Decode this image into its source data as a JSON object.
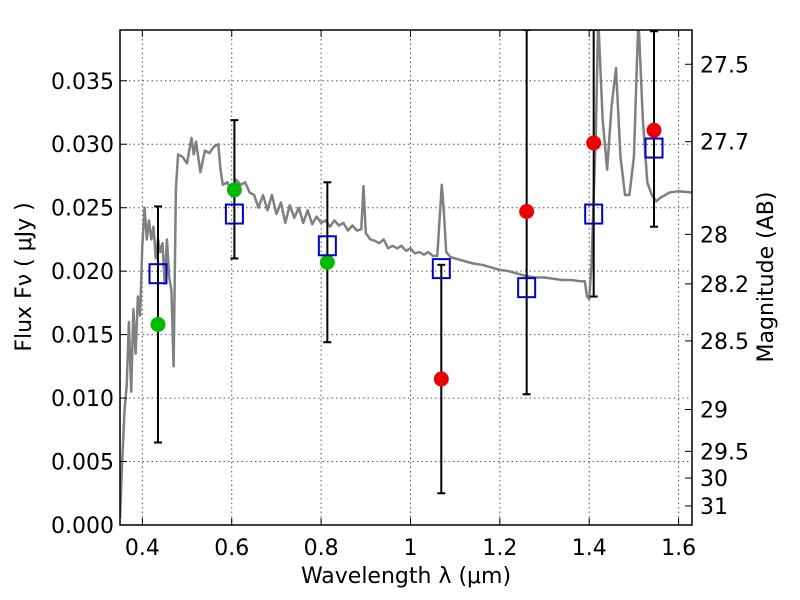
{
  "chart_data": {
    "type": "scatter",
    "title": "",
    "xlabel": "Wavelength  λ (μm)",
    "ylabel": "Flux  Fν  ( μJy )",
    "ylabel_right": "Magnitude (AB)",
    "xlim": [
      0.35,
      1.63
    ],
    "ylim": [
      0.0,
      0.039
    ],
    "grid": true,
    "x_ticks": [
      {
        "value": 0.4,
        "label": "0.4"
      },
      {
        "value": 0.6,
        "label": "0.6"
      },
      {
        "value": 0.8,
        "label": "0.8"
      },
      {
        "value": 1.0,
        "label": "1"
      },
      {
        "value": 1.2,
        "label": "1.2"
      },
      {
        "value": 1.4,
        "label": "1.4"
      },
      {
        "value": 1.6,
        "label": "1.6"
      }
    ],
    "y_ticks": [
      {
        "value": 0.0,
        "label": "0.000"
      },
      {
        "value": 0.005,
        "label": "0.005"
      },
      {
        "value": 0.01,
        "label": "0.010"
      },
      {
        "value": 0.015,
        "label": "0.015"
      },
      {
        "value": 0.02,
        "label": "0.020"
      },
      {
        "value": 0.025,
        "label": "0.025"
      },
      {
        "value": 0.03,
        "label": "0.030"
      },
      {
        "value": 0.035,
        "label": "0.035"
      }
    ],
    "right_ticks": [
      {
        "flux": 0.0363,
        "label": "27.5"
      },
      {
        "flux": 0.0302,
        "label": "27.7"
      },
      {
        "flux": 0.0229,
        "label": "28"
      },
      {
        "flux": 0.019,
        "label": "28.2"
      },
      {
        "flux": 0.0145,
        "label": "28.5"
      },
      {
        "flux": 0.0091,
        "label": "29"
      },
      {
        "flux": 0.0058,
        "label": "29.5"
      },
      {
        "flux": 0.0037,
        "label": "30"
      },
      {
        "flux": 0.0015,
        "label": "31"
      }
    ],
    "colors": {
      "model": "#808080",
      "green": "#00bb00",
      "red": "#ee0000",
      "box": "#0000cc",
      "errorbar": "#000000",
      "grid": "#555555"
    },
    "series": [
      {
        "type": "line",
        "points": [
          [
            0.35,
            0.0005
          ],
          [
            0.355,
            0.005
          ],
          [
            0.36,
            0.009
          ],
          [
            0.365,
            0.011
          ],
          [
            0.37,
            0.016
          ],
          [
            0.375,
            0.0105
          ],
          [
            0.38,
            0.017
          ],
          [
            0.385,
            0.0135
          ],
          [
            0.39,
            0.018
          ],
          [
            0.395,
            0.0165
          ],
          [
            0.4,
            0.022
          ],
          [
            0.405,
            0.025
          ],
          [
            0.41,
            0.0225
          ],
          [
            0.415,
            0.024
          ],
          [
            0.42,
            0.0225
          ],
          [
            0.425,
            0.0235
          ],
          [
            0.43,
            0.021
          ],
          [
            0.435,
            0.0225
          ],
          [
            0.44,
            0.0215
          ],
          [
            0.445,
            0.0222
          ],
          [
            0.45,
            0.019
          ],
          [
            0.455,
            0.0225
          ],
          [
            0.46,
            0.0195
          ],
          [
            0.465,
            0.0185
          ],
          [
            0.47,
            0.0125
          ],
          [
            0.475,
            0.0265
          ],
          [
            0.48,
            0.0292
          ],
          [
            0.49,
            0.029
          ],
          [
            0.5,
            0.0285
          ],
          [
            0.51,
            0.0305
          ],
          [
            0.515,
            0.0292
          ],
          [
            0.52,
            0.0302
          ],
          [
            0.53,
            0.0278
          ],
          [
            0.54,
            0.0295
          ],
          [
            0.55,
            0.0293
          ],
          [
            0.56,
            0.0298
          ],
          [
            0.57,
            0.03
          ],
          [
            0.575,
            0.028
          ],
          [
            0.58,
            0.0268
          ],
          [
            0.59,
            0.027
          ],
          [
            0.6,
            0.0263
          ],
          [
            0.61,
            0.0272
          ],
          [
            0.62,
            0.0268
          ],
          [
            0.63,
            0.027
          ],
          [
            0.64,
            0.0262
          ],
          [
            0.65,
            0.026
          ],
          [
            0.66,
            0.025
          ],
          [
            0.67,
            0.026
          ],
          [
            0.68,
            0.0248
          ],
          [
            0.69,
            0.026
          ],
          [
            0.7,
            0.0245
          ],
          [
            0.71,
            0.0254
          ],
          [
            0.72,
            0.0238
          ],
          [
            0.73,
            0.0252
          ],
          [
            0.74,
            0.0242
          ],
          [
            0.75,
            0.025
          ],
          [
            0.76,
            0.0238
          ],
          [
            0.77,
            0.0248
          ],
          [
            0.78,
            0.0237
          ],
          [
            0.79,
            0.0243
          ],
          [
            0.8,
            0.0238
          ],
          [
            0.81,
            0.024
          ],
          [
            0.82,
            0.0235
          ],
          [
            0.83,
            0.024
          ],
          [
            0.84,
            0.0236
          ],
          [
            0.85,
            0.0238
          ],
          [
            0.86,
            0.0232
          ],
          [
            0.87,
            0.0236
          ],
          [
            0.88,
            0.0232
          ],
          [
            0.89,
            0.0233
          ],
          [
            0.895,
            0.0267
          ],
          [
            0.9,
            0.023
          ],
          [
            0.91,
            0.0225
          ],
          [
            0.92,
            0.0224
          ],
          [
            0.93,
            0.0222
          ],
          [
            0.94,
            0.0225
          ],
          [
            0.95,
            0.0218
          ],
          [
            0.96,
            0.022
          ],
          [
            0.97,
            0.0218
          ],
          [
            0.98,
            0.022
          ],
          [
            0.99,
            0.0216
          ],
          [
            1.0,
            0.0218
          ],
          [
            1.01,
            0.0214
          ],
          [
            1.02,
            0.0215
          ],
          [
            1.03,
            0.0213
          ],
          [
            1.04,
            0.0215
          ],
          [
            1.05,
            0.0212
          ],
          [
            1.06,
            0.0212
          ],
          [
            1.065,
            0.024
          ],
          [
            1.07,
            0.0268
          ],
          [
            1.075,
            0.0245
          ],
          [
            1.08,
            0.0215
          ],
          [
            1.09,
            0.0211
          ],
          [
            1.1,
            0.021
          ],
          [
            1.12,
            0.0208
          ],
          [
            1.14,
            0.0206
          ],
          [
            1.16,
            0.0205
          ],
          [
            1.18,
            0.0203
          ],
          [
            1.2,
            0.0201
          ],
          [
            1.22,
            0.02
          ],
          [
            1.24,
            0.0198
          ],
          [
            1.26,
            0.0196
          ],
          [
            1.28,
            0.0195
          ],
          [
            1.3,
            0.0195
          ],
          [
            1.32,
            0.0194
          ],
          [
            1.34,
            0.0193
          ],
          [
            1.36,
            0.0193
          ],
          [
            1.38,
            0.0192
          ],
          [
            1.39,
            0.0192
          ],
          [
            1.395,
            0.018
          ],
          [
            1.4,
            0.0178
          ],
          [
            1.405,
            0.0205
          ],
          [
            1.41,
            0.026
          ],
          [
            1.415,
            0.031
          ],
          [
            1.42,
            0.04
          ],
          [
            1.43,
            0.032
          ],
          [
            1.44,
            0.028
          ],
          [
            1.45,
            0.033
          ],
          [
            1.46,
            0.036
          ],
          [
            1.47,
            0.029
          ],
          [
            1.48,
            0.026
          ],
          [
            1.49,
            0.026
          ],
          [
            1.5,
            0.029
          ],
          [
            1.51,
            0.04
          ],
          [
            1.52,
            0.032
          ],
          [
            1.53,
            0.027
          ],
          [
            1.54,
            0.026
          ],
          [
            1.55,
            0.0255
          ],
          [
            1.56,
            0.0258
          ],
          [
            1.57,
            0.026
          ],
          [
            1.58,
            0.0262
          ],
          [
            1.6,
            0.0263
          ],
          [
            1.63,
            0.0262
          ]
        ]
      },
      {
        "type": "scatter",
        "marker": "circle",
        "points": [
          [
            0.435,
            0.0158
          ],
          [
            0.606,
            0.0264
          ],
          [
            0.814,
            0.0207
          ]
        ]
      },
      {
        "type": "scatter",
        "marker": "circle",
        "points": [
          [
            1.069,
            0.0115
          ],
          [
            1.26,
            0.0247
          ],
          [
            1.41,
            0.0301
          ],
          [
            1.545,
            0.0311
          ]
        ]
      },
      {
        "type": "scatter",
        "marker": "open-square",
        "points": [
          [
            0.435,
            0.0198
          ],
          [
            0.606,
            0.0245
          ],
          [
            0.814,
            0.022
          ],
          [
            1.069,
            0.0202
          ],
          [
            1.26,
            0.0187
          ],
          [
            1.41,
            0.0245
          ],
          [
            1.545,
            0.0297
          ]
        ]
      }
    ],
    "errorbars": [
      {
        "x": 0.435,
        "low": 0.0065,
        "high": 0.0251
      },
      {
        "x": 0.606,
        "low": 0.021,
        "high": 0.0319
      },
      {
        "x": 0.814,
        "low": 0.0144,
        "high": 0.027
      },
      {
        "x": 1.069,
        "low": 0.0025,
        "high": 0.0205
      },
      {
        "x": 1.26,
        "low": 0.0103,
        "high": 0.039
      },
      {
        "x": 1.41,
        "low": 0.018,
        "high": 0.039
      },
      {
        "x": 1.545,
        "low": 0.0235,
        "high": 0.0389
      }
    ]
  }
}
